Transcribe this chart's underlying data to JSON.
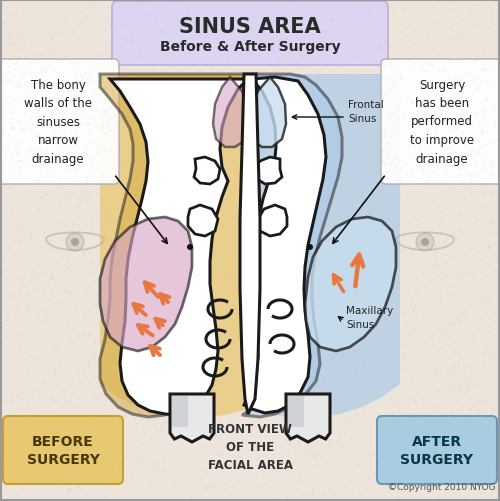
{
  "title_main": "SINUS AREA",
  "title_sub": "Before & After Surgery",
  "bg_color": "#ede5dc",
  "title_bg": "#dcd4f0",
  "left_region_color": "#e8c870",
  "right_region_color": "#b0cce8",
  "before_label": "BEFORE\nSURGERY",
  "after_label": "AFTER\nSURGERY",
  "center_label": "FRONT VIEW\nOF THE\nFACIAL AREA",
  "before_box_color": "#e8c870",
  "after_box_color": "#a8cce0",
  "left_annotation": "The bony\nwalls of the\nsinuses\nnarrow\ndrainage",
  "right_annotation": "Surgery\nhas been\nperformed\nto improve\ndrainage",
  "frontal_sinus_label": "Frontal\nSinus",
  "maxillary_sinus_label": "Maxillary\nSinus",
  "copyright": "©Copyright 2010 NYOG",
  "mauve_color": "#d8a8c8",
  "arrow_color": "#e87840",
  "sinus_blue": "#b0cce8",
  "light_blue_fill": "#c8dff0",
  "ec_main": "#1a1a1a",
  "lw_main": 2.2
}
